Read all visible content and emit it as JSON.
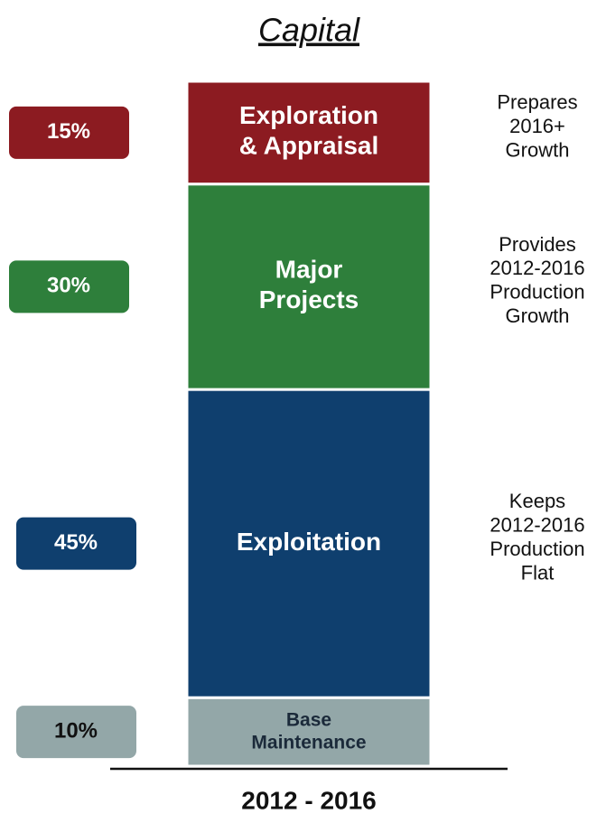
{
  "chart_data": {
    "type": "stacked_bar",
    "title": "Capital",
    "categories": [
      "2012 - 2016"
    ],
    "series": [
      {
        "name": "Base\nMaintenance",
        "color": "#93a7a8",
        "text_color": "#1b2a3a",
        "values": [
          10
        ],
        "value_labels": [
          "10%"
        ],
        "description": ""
      },
      {
        "name": "Exploitation",
        "color": "#0f3f6e",
        "text_color": "#ffffff",
        "values": [
          45
        ],
        "value_labels": [
          "45%"
        ],
        "description": "Keeps\n2012-2016\nProduction\nFlat"
      },
      {
        "name": "Major\nProjects",
        "color": "#2e7f3b",
        "text_color": "#ffffff",
        "values": [
          30
        ],
        "value_labels": [
          "30%"
        ],
        "description": "Provides\n2012-2016\nProduction\nGrowth"
      },
      {
        "name": "Exploration\n& Appraisal",
        "color": "#8c1b21",
        "text_color": "#ffffff",
        "values": [
          15
        ],
        "value_labels": [
          "15%"
        ],
        "description": "Prepares\n2016+\nGrowth"
      }
    ]
  }
}
